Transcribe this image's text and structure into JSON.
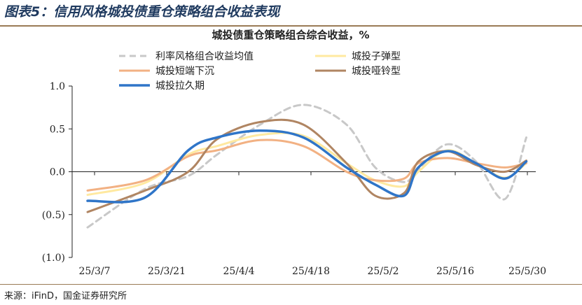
{
  "figure_title": "图表5：信用风格城投债重仓策略组合收益表现",
  "source": "来源：iFinD，国金证券研究所",
  "chart_data": {
    "type": "line",
    "title": "城投债重仓策略组合综合收益，%",
    "ylim": [
      -1.0,
      1.0
    ],
    "y_ticks": [
      {
        "value": 1.0,
        "label": "1.0",
        "negative": false
      },
      {
        "value": 0.5,
        "label": "0.5",
        "negative": false
      },
      {
        "value": 0.0,
        "label": "0.0",
        "negative": false
      },
      {
        "value": -0.5,
        "label": "(0.5)",
        "negative": true
      },
      {
        "value": -1.0,
        "label": "(1.0)",
        "negative": true
      }
    ],
    "x_tick_labels": [
      "25/3/7",
      "25/3/21",
      "25/4/4",
      "25/4/18",
      "25/5/2",
      "25/5/16",
      "25/5/30"
    ],
    "x_range": [
      0,
      63
    ],
    "colors": {
      "negative_tick": "#c00000",
      "axis": "#222222"
    },
    "series": [
      {
        "name": "利率风格组合收益均值",
        "color": "#c8c8c8",
        "dash": true,
        "width": 3,
        "x": [
          0,
          8,
          14,
          18,
          24,
          30,
          36,
          40,
          44,
          46,
          50,
          54,
          58,
          61
        ],
        "y": [
          -0.65,
          -0.2,
          -0.05,
          0.2,
          0.55,
          0.78,
          0.55,
          0.05,
          -0.12,
          0.03,
          0.32,
          0.12,
          -0.32,
          0.4
        ]
      },
      {
        "name": "城投子弹型",
        "color": "#ffe9a0",
        "dash": false,
        "width": 3,
        "x": [
          0,
          8,
          14,
          18,
          24,
          30,
          36,
          40,
          44,
          46,
          50,
          54,
          58,
          61
        ],
        "y": [
          -0.27,
          -0.13,
          0.2,
          0.3,
          0.43,
          0.42,
          0.1,
          -0.1,
          -0.17,
          0.0,
          0.25,
          0.1,
          -0.07,
          0.1
        ]
      },
      {
        "name": "城投短端下沉",
        "color": "#f2b183",
        "dash": false,
        "width": 3,
        "x": [
          0,
          8,
          14,
          18,
          24,
          30,
          36,
          40,
          44,
          46,
          50,
          54,
          58,
          61
        ],
        "y": [
          -0.22,
          -0.1,
          0.18,
          0.25,
          0.37,
          0.3,
          0.0,
          -0.1,
          -0.08,
          0.1,
          0.16,
          0.1,
          0.05,
          0.1
        ]
      },
      {
        "name": "城投哑铃型",
        "color": "#b08562",
        "dash": false,
        "width": 3,
        "x": [
          0,
          8,
          14,
          18,
          24,
          30,
          36,
          40,
          44,
          46,
          50,
          54,
          58,
          61
        ],
        "y": [
          -0.47,
          -0.22,
          0.0,
          0.38,
          0.58,
          0.55,
          0.1,
          -0.28,
          -0.25,
          0.12,
          0.24,
          0.08,
          0.0,
          0.13
        ]
      },
      {
        "name": "城投拉久期",
        "color": "#2f75c8",
        "dash": false,
        "width": 3.5,
        "x": [
          0,
          8,
          14,
          18,
          24,
          30,
          36,
          40,
          44,
          46,
          50,
          54,
          58,
          61
        ],
        "y": [
          -0.34,
          -0.3,
          0.25,
          0.4,
          0.48,
          0.4,
          0.05,
          -0.15,
          -0.28,
          0.05,
          0.24,
          0.1,
          -0.08,
          0.12
        ]
      }
    ]
  }
}
